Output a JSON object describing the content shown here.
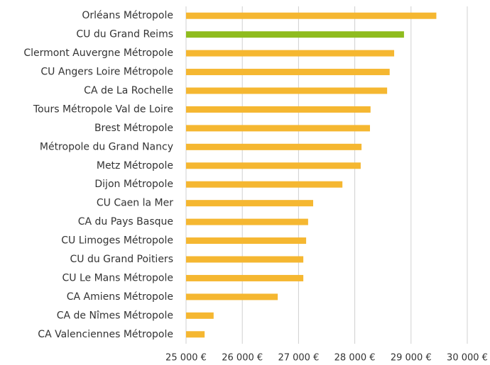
{
  "chart_data": {
    "type": "barh",
    "categories": [
      "Orléans Métropole",
      "CU du Grand Reims",
      "Clermont Auvergne Métropole",
      "CU Angers Loire Métropole",
      "CA de La Rochelle",
      "Tours Métropole Val de Loire",
      "Brest Métropole",
      "Métropole du Grand Nancy",
      "Metz Métropole",
      "Dijon Métropole",
      "CU Caen la Mer",
      "CA du Pays Basque",
      "CU Limoges Métropole",
      "CU du Grand Poitiers",
      "CU Le Mans Métropole",
      "CA Amiens Métropole",
      "CA de Nîmes Métropole",
      "CA Valenciennes Métropole"
    ],
    "values": [
      29450,
      28875,
      28700,
      28620,
      28575,
      28280,
      28270,
      28120,
      28105,
      27780,
      27260,
      27170,
      27135,
      27085,
      27085,
      26630,
      25490,
      25330
    ],
    "colors": [
      "#f5b731",
      "#8fbc1e",
      "#f5b731",
      "#f5b731",
      "#f5b731",
      "#f5b731",
      "#f5b731",
      "#f5b731",
      "#f5b731",
      "#f5b731",
      "#f5b731",
      "#f5b731",
      "#f5b731",
      "#f5b731",
      "#f5b731",
      "#f5b731",
      "#f5b731",
      "#f5b731"
    ],
    "xlim": [
      25000,
      30000
    ],
    "xticks": [
      {
        "value": 25000,
        "label": "25 000 €"
      },
      {
        "value": 26000,
        "label": "26 000 €"
      },
      {
        "value": 27000,
        "label": "27 000 €"
      },
      {
        "value": 28000,
        "label": "28 000 €"
      },
      {
        "value": 29000,
        "label": "29 000 €"
      },
      {
        "value": 30000,
        "label": "30 000 €"
      }
    ],
    "grid": true
  }
}
